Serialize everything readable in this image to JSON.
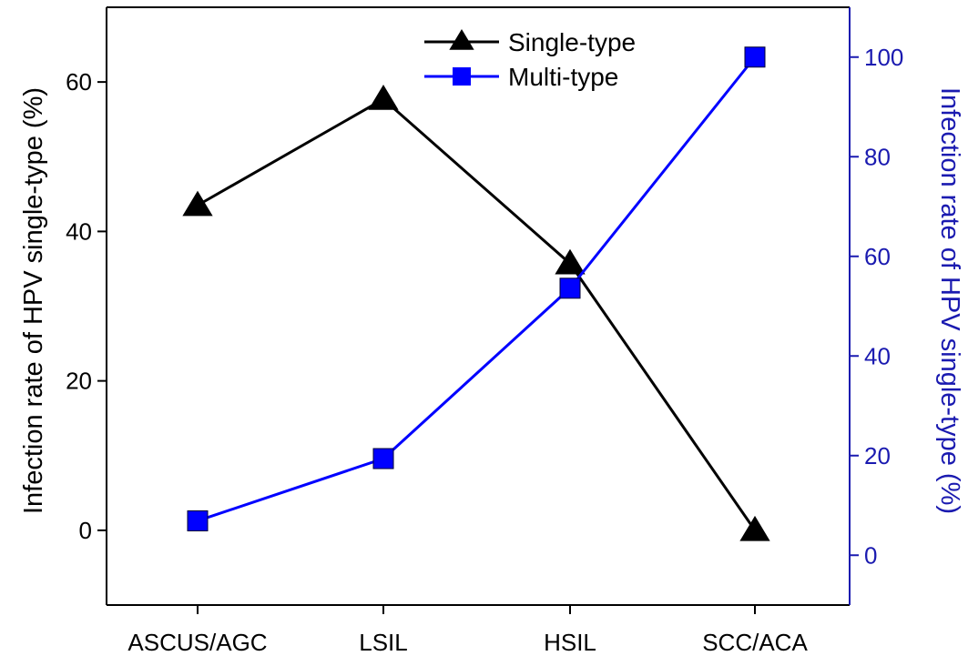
{
  "chart_data": {
    "type": "line",
    "categories": [
      "ASCUS/AGC",
      "LSIL",
      "HSIL",
      "SCC/ACA"
    ],
    "series": [
      {
        "name": "Single-type",
        "axis": "left",
        "marker": "triangle",
        "color": "#000000",
        "values": [
          43.5,
          57.7,
          35.7,
          0
        ]
      },
      {
        "name": "Multi-type",
        "axis": "right",
        "marker": "square",
        "color": "#0000ff",
        "values": [
          6.9,
          19.4,
          53.6,
          100
        ]
      }
    ],
    "left_axis": {
      "label": "Infection rate of HPV single-type (%)",
      "ylim": [
        -10,
        70
      ],
      "ticks": [
        0,
        20,
        40,
        60
      ],
      "color": "#000000"
    },
    "right_axis": {
      "label": "Infection rate of HPV single-type (%)",
      "ylim": [
        -10,
        110
      ],
      "ticks": [
        0,
        20,
        40,
        60,
        80,
        100
      ],
      "color": "#1a1ab0"
    },
    "legend_position": "top-center",
    "grid": false
  }
}
